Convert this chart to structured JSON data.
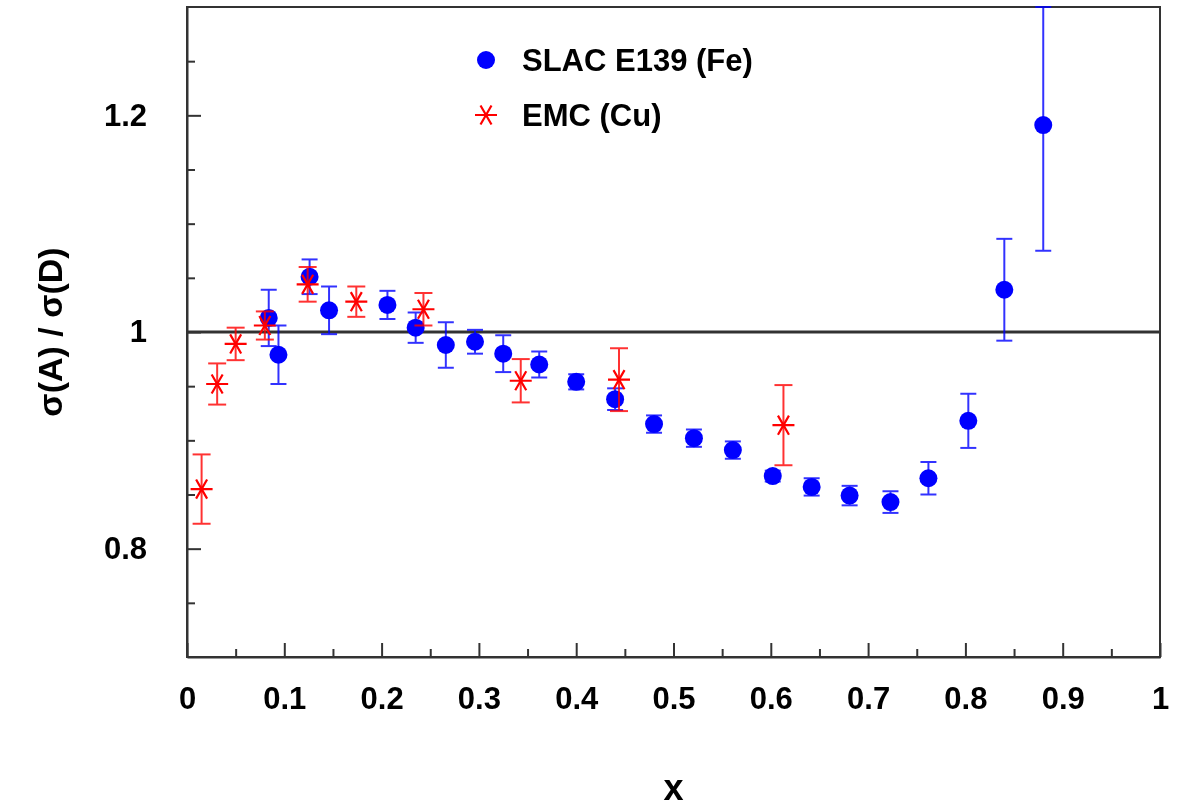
{
  "chart_data": {
    "type": "scatter",
    "xlabel": "x",
    "ylabel": "σ(A) / σ(D)",
    "xlim": [
      0,
      1
    ],
    "ylim": [
      0.7,
      1.3
    ],
    "xticks": [
      0,
      {
        "value": 0.05,
        "label": null
      },
      {
        "value": 0.1,
        "label": "0.1"
      },
      {
        "value": 0.15,
        "label": null
      },
      {
        "value": 0.2,
        "label": "0.2"
      },
      {
        "value": 0.25,
        "label": null
      },
      {
        "value": 0.3,
        "label": "0.3"
      },
      {
        "value": 0.35,
        "label": null
      },
      {
        "value": 0.4,
        "label": "0.4"
      },
      {
        "value": 0.45,
        "label": null
      },
      {
        "value": 0.5,
        "label": "0.5"
      },
      {
        "value": 0.55,
        "label": null
      },
      {
        "value": 0.6,
        "label": "0.6"
      },
      {
        "value": 0.65,
        "label": null
      },
      {
        "value": 0.7,
        "label": "0.7"
      },
      {
        "value": 0.75,
        "label": null
      },
      {
        "value": 0.8,
        "label": "0.8"
      },
      {
        "value": 0.85,
        "label": null
      },
      {
        "value": 0.9,
        "label": "0.9"
      },
      {
        "value": 0.95,
        "label": null
      },
      1
    ],
    "yticks": [
      {
        "value": 0.75,
        "label": null
      },
      {
        "value": 0.8,
        "label": "0.8"
      },
      {
        "value": 0.85,
        "label": null
      },
      {
        "value": 0.9,
        "label": null
      },
      {
        "value": 0.95,
        "label": null
      },
      1,
      {
        "value": 1.05,
        "label": null
      },
      {
        "value": 1.1,
        "label": null
      },
      {
        "value": 1.15,
        "label": null
      },
      {
        "value": 1.2,
        "label": "1.2"
      },
      {
        "value": 1.25,
        "label": null
      }
    ],
    "grid": false,
    "legend": "top",
    "ref_lines": [
      {
        "axis": "y",
        "value": 1,
        "color": "#000000"
      }
    ],
    "series": [
      {
        "name": "SLAC E139 (Fe)",
        "color": "#0000ff",
        "marker": "circle",
        "x": [
          0.084,
          0.094,
          0.126,
          0.146,
          0.206,
          0.235,
          0.266,
          0.296,
          0.325,
          0.362,
          0.4,
          0.44,
          0.48,
          0.521,
          0.561,
          0.602,
          0.642,
          0.681,
          0.723,
          0.762,
          0.803,
          0.84,
          0.88
        ],
        "values": [
          1.013,
          0.979,
          1.051,
          1.02,
          1.025,
          1.004,
          0.988,
          0.991,
          0.98,
          0.97,
          0.954,
          0.938,
          0.915,
          0.902,
          0.891,
          0.867,
          0.857,
          0.849,
          0.843,
          0.865,
          0.918,
          1.039,
          1.191
        ],
        "errors": [
          0.026,
          0.027,
          0.016,
          0.022,
          0.013,
          0.014,
          0.021,
          0.011,
          0.017,
          0.012,
          0.007,
          0.01,
          0.008,
          0.008,
          0.008,
          0.005,
          0.008,
          0.009,
          0.01,
          0.015,
          0.025,
          0.047,
          [
            1.075,
            1.3
          ]
        ]
      },
      {
        "name": "EMC (Cu)",
        "color": "#ff0000",
        "marker": "cross",
        "x": [
          0.015,
          0.031,
          0.05,
          0.08,
          0.124,
          0.174,
          0.243,
          0.343,
          0.444,
          0.613
        ],
        "values": [
          0.855,
          0.952,
          0.989,
          1.006,
          1.044,
          1.028,
          1.021,
          0.955,
          0.956,
          0.914
        ],
        "errors": [
          0.032,
          0.019,
          0.015,
          0.013,
          0.016,
          0.014,
          0.015,
          0.02,
          0.029,
          0.037
        ]
      }
    ]
  }
}
